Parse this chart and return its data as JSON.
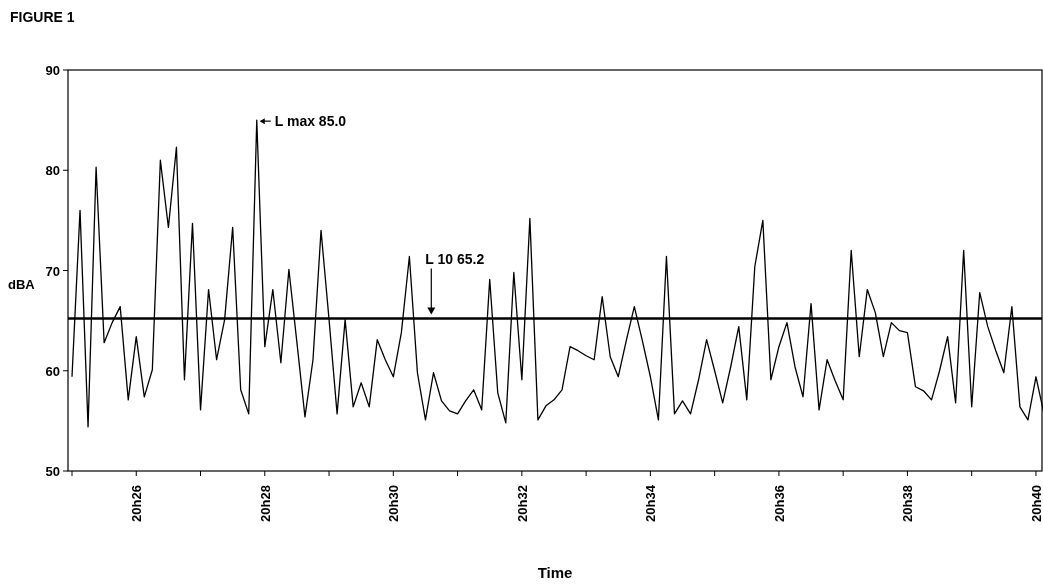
{
  "chart_data": {
    "type": "line",
    "title": "FIGURE 1",
    "xlabel": "Time",
    "ylabel": "dBA",
    "ylim": [
      50,
      90
    ],
    "yticks": [
      50,
      60,
      70,
      80,
      90
    ],
    "categories": [
      null,
      null,
      null,
      null,
      null,
      null,
      null,
      null,
      "20h26",
      null,
      null,
      null,
      null,
      null,
      null,
      null,
      null,
      null,
      null,
      null,
      null,
      null,
      null,
      null,
      "20h28",
      null,
      null,
      null,
      null,
      null,
      null,
      null,
      null,
      null,
      null,
      null,
      null,
      null,
      null,
      null,
      "20h30",
      null,
      null,
      null,
      null,
      null,
      null,
      null,
      null,
      null,
      null,
      null,
      null,
      null,
      null,
      null,
      "20h32",
      null,
      null,
      null,
      null,
      null,
      null,
      null,
      null,
      null,
      null,
      null,
      null,
      null,
      null,
      null,
      "20h34",
      null,
      null,
      null,
      null,
      null,
      null,
      null,
      null,
      null,
      null,
      null,
      null,
      null,
      null,
      null,
      "20h36",
      null,
      null,
      null,
      null,
      null,
      null,
      null,
      null,
      null,
      null,
      null,
      null,
      null,
      null,
      null,
      "20h38",
      null,
      null,
      null,
      null,
      null,
      null,
      null,
      null,
      null,
      null,
      null,
      null,
      null,
      null,
      null,
      "20h40",
      null
    ],
    "series": [
      {
        "color": "#000000",
        "values": [
          59.4,
          76.0,
          54.4,
          80.3,
          62.8,
          64.8,
          66.4,
          57.1,
          63.4,
          57.4,
          60.1,
          81.0,
          74.3,
          82.3,
          59.1,
          74.7,
          56.1,
          68.1,
          61.1,
          65.1,
          74.3,
          58.1,
          55.7,
          85.0,
          62.4,
          68.1,
          60.8,
          70.1,
          62.8,
          55.4,
          61.1,
          74.0,
          65.1,
          55.7,
          65.1,
          56.4,
          58.8,
          56.4,
          63.1,
          61.1,
          59.4,
          63.8,
          71.4,
          59.8,
          55.1,
          59.8,
          57.0,
          56.0,
          55.7,
          57.0,
          58.1,
          56.1,
          69.1,
          57.8,
          54.8,
          69.8,
          59.1,
          75.2,
          55.1,
          56.5,
          57.1,
          58.1,
          62.4,
          62.0,
          61.5,
          61.1,
          67.4,
          61.4,
          59.4,
          63.0,
          66.4,
          63.0,
          59.4,
          55.1,
          71.4,
          55.7,
          57.0,
          55.7,
          59.1,
          63.1,
          60.0,
          56.8,
          60.4,
          64.4,
          57.1,
          70.4,
          75.0,
          59.1,
          62.4,
          64.8,
          60.4,
          57.4,
          66.7,
          56.1,
          61.1,
          59.0,
          57.1,
          72.0,
          61.4,
          68.1,
          65.8,
          61.4,
          64.8,
          64.0,
          63.8,
          58.4,
          58.0,
          57.1,
          60.0,
          63.4,
          56.8,
          72.0,
          56.4,
          67.8,
          64.4,
          62.0,
          59.8,
          66.4,
          56.4,
          55.1,
          59.4,
          55.7
        ]
      }
    ],
    "ref_lines": [
      {
        "axis": "y",
        "value": 65.2,
        "color": "#000000"
      }
    ],
    "annotations": [
      "L max 85.0",
      "L 10 65.2"
    ]
  }
}
